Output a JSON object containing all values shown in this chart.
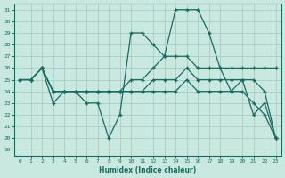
{
  "xlabel": "Humidex (Indice chaleur)",
  "bg_color": "#c8e8e0",
  "grid_color": "#a8ccc8",
  "line_color": "#1a6b60",
  "xlim": [
    -0.5,
    23.5
  ],
  "ylim": [
    18.5,
    31.5
  ],
  "xticks": [
    0,
    1,
    2,
    3,
    4,
    5,
    6,
    7,
    8,
    9,
    10,
    11,
    12,
    13,
    14,
    15,
    16,
    17,
    18,
    19,
    20,
    21,
    22,
    23
  ],
  "yticks": [
    19,
    20,
    21,
    22,
    23,
    24,
    25,
    26,
    27,
    28,
    29,
    30,
    31
  ],
  "line_big_x": [
    2,
    3,
    4,
    5,
    6,
    7,
    8,
    9,
    10,
    11,
    12,
    13,
    14,
    15,
    16,
    17,
    18,
    19,
    20,
    21,
    22,
    23
  ],
  "line_big_y": [
    26,
    23,
    24,
    24,
    23,
    23,
    20,
    22,
    29,
    29,
    28,
    27,
    31,
    31,
    31,
    29,
    26,
    24,
    25,
    22,
    23,
    20
  ],
  "line_top_x": [
    0,
    1,
    2,
    3,
    4,
    5,
    6,
    7,
    8,
    9,
    10,
    11,
    12,
    13,
    14,
    15,
    16,
    17,
    18,
    19,
    20,
    21,
    22,
    23
  ],
  "line_top_y": [
    25,
    25,
    26,
    24,
    24,
    24,
    24,
    24,
    24,
    24,
    25,
    25,
    26,
    27,
    27,
    27,
    26,
    26,
    26,
    26,
    26,
    26,
    26,
    26
  ],
  "line_mid_x": [
    0,
    1,
    2,
    3,
    4,
    5,
    6,
    7,
    8,
    9,
    10,
    11,
    12,
    13,
    14,
    15,
    16,
    17,
    18,
    19,
    20,
    21,
    22,
    23
  ],
  "line_mid_y": [
    25,
    25,
    26,
    24,
    24,
    24,
    24,
    24,
    24,
    24,
    24,
    24,
    25,
    25,
    25,
    26,
    25,
    25,
    25,
    25,
    25,
    25,
    24,
    20
  ],
  "line_low_x": [
    0,
    1,
    2,
    3,
    4,
    5,
    6,
    7,
    8,
    9,
    10,
    11,
    12,
    13,
    14,
    15,
    16,
    17,
    18,
    19,
    20,
    21,
    22,
    23
  ],
  "line_low_y": [
    25,
    25,
    26,
    24,
    24,
    24,
    24,
    24,
    24,
    24,
    24,
    24,
    24,
    24,
    24,
    25,
    24,
    24,
    24,
    24,
    24,
    23,
    22,
    20
  ]
}
